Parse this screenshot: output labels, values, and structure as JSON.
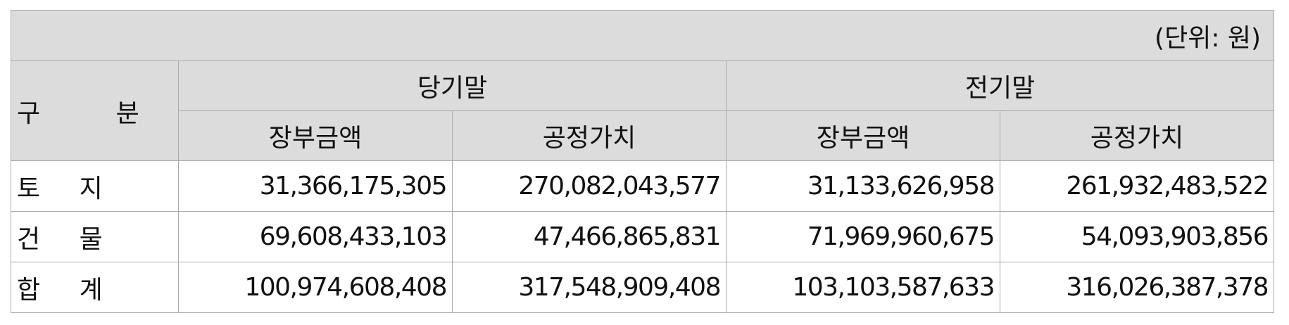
{
  "unit": "(단위: 원)",
  "header": {
    "category": "구 분",
    "groups": [
      "당기말",
      "전기말"
    ],
    "subcolumns": [
      "장부금액",
      "공정가치",
      "장부금액",
      "공정가치"
    ]
  },
  "rows": [
    {
      "label": "토 지",
      "values": [
        "31,366,175,305",
        "270,082,043,577",
        "31,133,626,958",
        "261,932,483,522"
      ]
    },
    {
      "label": "건 물",
      "values": [
        "69,608,433,103",
        "47,466,865,831",
        "71,969,960,675",
        "54,093,903,856"
      ]
    },
    {
      "label": "합 계",
      "values": [
        "100,974,608,408",
        "317,548,909,408",
        "103,103,587,633",
        "316,026,387,378"
      ]
    }
  ]
}
